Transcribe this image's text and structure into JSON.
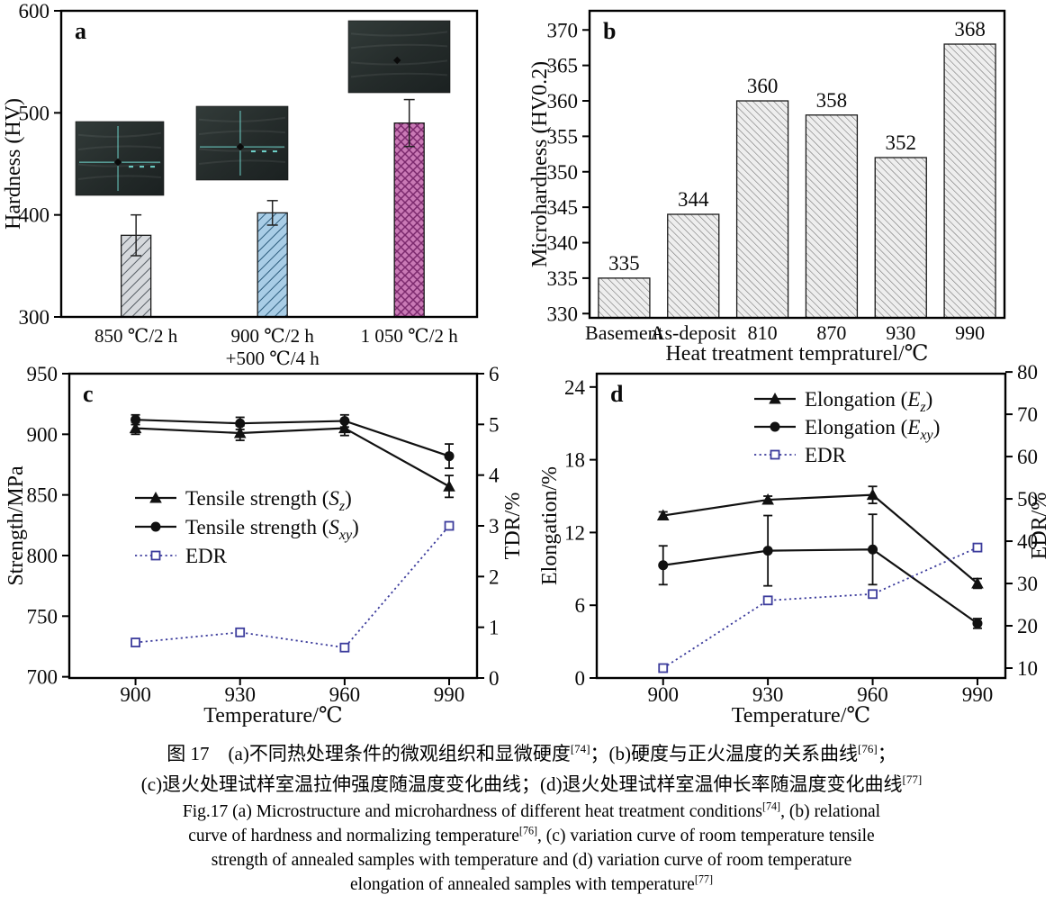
{
  "page": {
    "background": "#ffffff",
    "accent_edr_color": "#3c3c9c"
  },
  "caption": {
    "zh_lines": [
      [
        {
          "t": "图 17　(a)不同热处理条件的微观组织和显微硬度"
        },
        {
          "t": "[74]",
          "sup": 1
        },
        {
          "t": "；(b)硬度与正火温度的关系曲线"
        },
        {
          "t": "[76]",
          "sup": 1
        },
        {
          "t": "；"
        }
      ],
      [
        {
          "t": "(c)退火处理试样室温拉伸强度随温度变化曲线；(d)退火处理试样室温伸长率随温度变化曲线"
        },
        {
          "t": "[77]",
          "sup": 1
        }
      ]
    ],
    "en_lines": [
      [
        {
          "t": "Fig.17 (a) Microstructure and microhardness of different heat treatment conditions"
        },
        {
          "t": "[74]",
          "sup": 1
        },
        {
          "t": ", (b) relational"
        }
      ],
      [
        {
          "t": "curve of hardness and normalizing temperature"
        },
        {
          "t": "[76]",
          "sup": 1
        },
        {
          "t": ", (c) variation curve of room temperature tensile"
        }
      ],
      [
        {
          "t": "strength of annealed samples with temperature and (d) variation curve of room temperature"
        }
      ],
      [
        {
          "t": "elongation of annealed samples with temperature"
        },
        {
          "t": "[77]",
          "sup": 1
        }
      ]
    ]
  },
  "chart_data": [
    {
      "id": "a",
      "type": "bar",
      "panel_label": "a",
      "ylabel": "Hardness (HV)",
      "ylim": [
        300,
        600
      ],
      "yticks": [
        300,
        400,
        500,
        600
      ],
      "categories": [
        [
          "850 ℃/2 h"
        ],
        [
          "900 ℃/2 h",
          "+500 ℃/4 h"
        ],
        [
          "1 050 ℃/2 h"
        ]
      ],
      "values": [
        380,
        402,
        490
      ],
      "errors": [
        20,
        12,
        23
      ],
      "bar_styles": [
        {
          "fill": "#d6d9dd",
          "hatch": "fwd",
          "hatch_color": "#555c63"
        },
        {
          "fill": "#a9cde6",
          "hatch": "fwd",
          "hatch_color": "#2e5d7d"
        },
        {
          "fill": "#c979b5",
          "hatch": "cross",
          "hatch_color": "#7c2a6e"
        }
      ],
      "insets": [
        "micrograph-850C",
        "micrograph-900C-500C",
        "micrograph-1050C"
      ]
    },
    {
      "id": "b",
      "type": "bar",
      "panel_label": "b",
      "ylabel": "Microhardness (HV0.2)",
      "xlabel": "Heat treatment tempraturel/℃",
      "ylim": [
        329.4,
        372.7
      ],
      "yticks": [
        330,
        335,
        340,
        345,
        350,
        355,
        360,
        365,
        370
      ],
      "categories": [
        [
          "Basement"
        ],
        [
          "As-deposit"
        ],
        [
          "810"
        ],
        [
          "870"
        ],
        [
          "930"
        ],
        [
          "990"
        ]
      ],
      "values": [
        335,
        344,
        360,
        358,
        352,
        368
      ],
      "show_value_labels": true,
      "bar_styles": [
        {
          "fill": "#eeeeee",
          "hatch": "back",
          "hatch_color": "#6d6d6d"
        }
      ]
    },
    {
      "id": "c",
      "type": "line",
      "panel_label": "c",
      "xlabel": "Temperature/℃",
      "ylabel_left": "Strength/MPa",
      "ylabel_right": "TDR/%",
      "x": [
        900,
        930,
        960,
        990
      ],
      "xlim": [
        881,
        998
      ],
      "xticks": [
        900,
        930,
        960,
        990
      ],
      "ylim_left": [
        699,
        950
      ],
      "yticks_left": [
        700,
        750,
        800,
        850,
        900,
        950
      ],
      "ylim_right": [
        0,
        6
      ],
      "yticks_right": [
        0,
        1,
        2,
        3,
        4,
        5,
        6
      ],
      "legend_position": "middle-left",
      "series": [
        {
          "name": [
            {
              "t": "Tensile strength ("
            },
            {
              "t": "S",
              "i": 1
            },
            {
              "t": "z",
              "i": 1,
              "sub": 1
            },
            {
              "t": ")"
            }
          ],
          "axis": "left",
          "marker": "triangle",
          "linestyle": "solid",
          "color": "#111111",
          "values": [
            905,
            901,
            905,
            857
          ],
          "errors": [
            5,
            6,
            6,
            9
          ]
        },
        {
          "name": [
            {
              "t": "Tensile strength ("
            },
            {
              "t": "S",
              "i": 1
            },
            {
              "t": "xy",
              "i": 1,
              "sub": 1
            },
            {
              "t": ")"
            }
          ],
          "axis": "left",
          "marker": "circle",
          "linestyle": "solid",
          "color": "#111111",
          "values": [
            912,
            909,
            911,
            882
          ],
          "errors": [
            4,
            5,
            5,
            10
          ]
        },
        {
          "name": [
            {
              "t": "EDR"
            }
          ],
          "axis": "right",
          "marker": "square-open",
          "linestyle": "dotted",
          "color": "#3c3c9c",
          "values": [
            0.7,
            0.9,
            0.6,
            3.0
          ],
          "errors": null
        }
      ]
    },
    {
      "id": "d",
      "type": "line",
      "panel_label": "d",
      "xlabel": "Temperature/℃",
      "ylabel_left": "Elongation/%",
      "ylabel_right": "EDR/%",
      "x": [
        900,
        930,
        960,
        990
      ],
      "xlim": [
        881,
        998
      ],
      "xticks": [
        900,
        930,
        960,
        990
      ],
      "ylim_left": [
        0,
        25.1
      ],
      "yticks_left": [
        0,
        6,
        12,
        18,
        24
      ],
      "ylim_right": [
        7.66,
        79.6
      ],
      "yticks_right": [
        10,
        20,
        30,
        40,
        50,
        60,
        70,
        80
      ],
      "legend_position": "top-center",
      "series": [
        {
          "name": [
            {
              "t": "Elongation ("
            },
            {
              "t": "E",
              "i": 1
            },
            {
              "t": "z",
              "i": 1,
              "sub": 1
            },
            {
              "t": ")"
            }
          ],
          "axis": "left",
          "marker": "triangle",
          "linestyle": "solid",
          "color": "#111111",
          "values": [
            13.4,
            14.7,
            15.1,
            7.8
          ],
          "errors": [
            0.3,
            0.3,
            0.7,
            0.4
          ]
        },
        {
          "name": [
            {
              "t": "Elongation ("
            },
            {
              "t": "E",
              "i": 1
            },
            {
              "t": "xy",
              "i": 1,
              "sub": 1
            },
            {
              "t": ")"
            }
          ],
          "axis": "left",
          "marker": "circle",
          "linestyle": "solid",
          "color": "#111111",
          "values": [
            9.3,
            10.5,
            10.6,
            4.5
          ],
          "errors": [
            1.6,
            2.9,
            2.9,
            0.4
          ]
        },
        {
          "name": [
            {
              "t": "EDR"
            }
          ],
          "axis": "right",
          "marker": "square-open",
          "linestyle": "dotted",
          "color": "#3c3c9c",
          "values": [
            10,
            26,
            27.5,
            38.5
          ],
          "errors": null
        }
      ]
    }
  ]
}
